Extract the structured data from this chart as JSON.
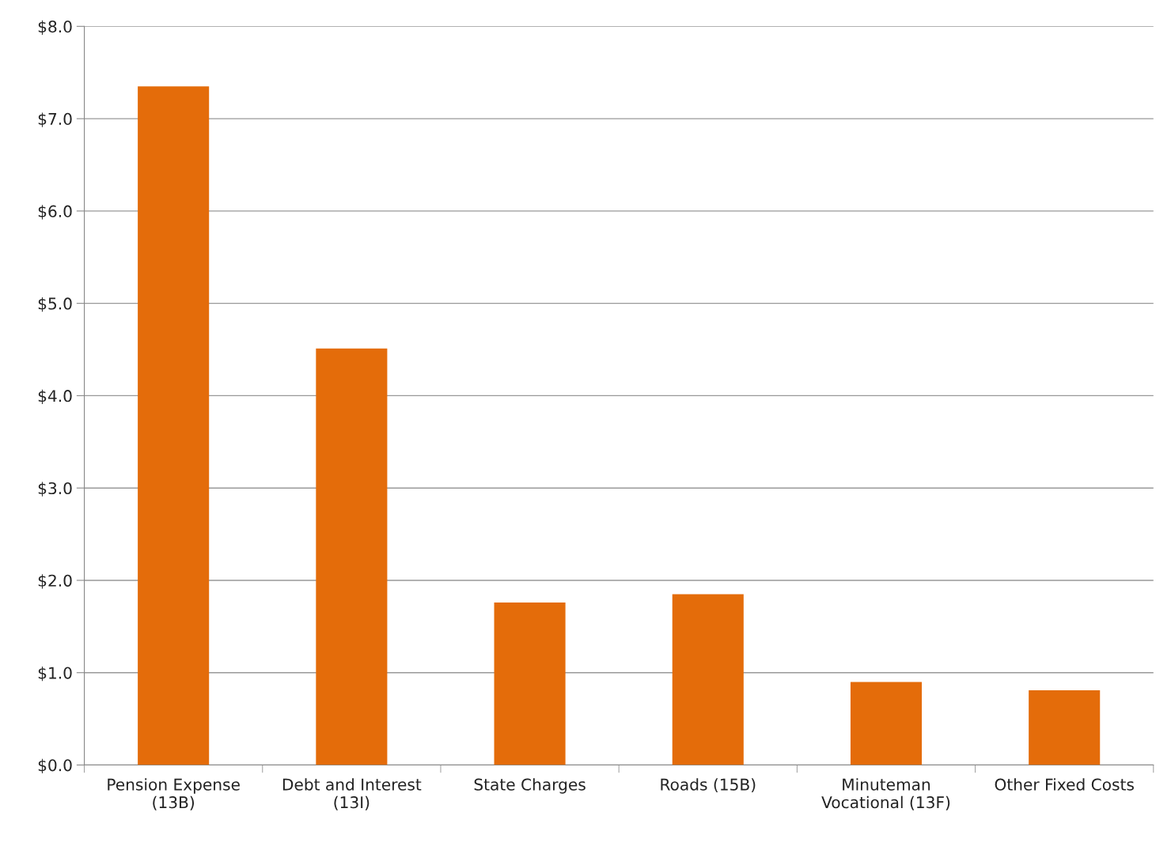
{
  "chart_data": {
    "type": "bar",
    "categories": [
      "Pension Expense\n(13B)",
      "Debt and Interest\n(13I)",
      "State Charges",
      "Roads (15B)",
      "Minuteman\nVocational (13F)",
      "Other Fixed Costs"
    ],
    "values": [
      7.35,
      4.51,
      1.76,
      1.85,
      0.9,
      0.81
    ],
    "color": "#e46c0a",
    "ylim": [
      0,
      8
    ],
    "yticks": [
      {
        "value": 0,
        "label": "$0.0"
      },
      {
        "value": 1,
        "label": "$1.0"
      },
      {
        "value": 2,
        "label": "$2.0"
      },
      {
        "value": 3,
        "label": "$3.0"
      },
      {
        "value": 4,
        "label": "$4.0"
      },
      {
        "value": 5,
        "label": "$5.0"
      },
      {
        "value": 6,
        "label": "$6.0"
      },
      {
        "value": 7,
        "label": "$7.0"
      },
      {
        "value": 8,
        "label": "$8.0"
      }
    ],
    "grid": "y",
    "legend": false
  }
}
